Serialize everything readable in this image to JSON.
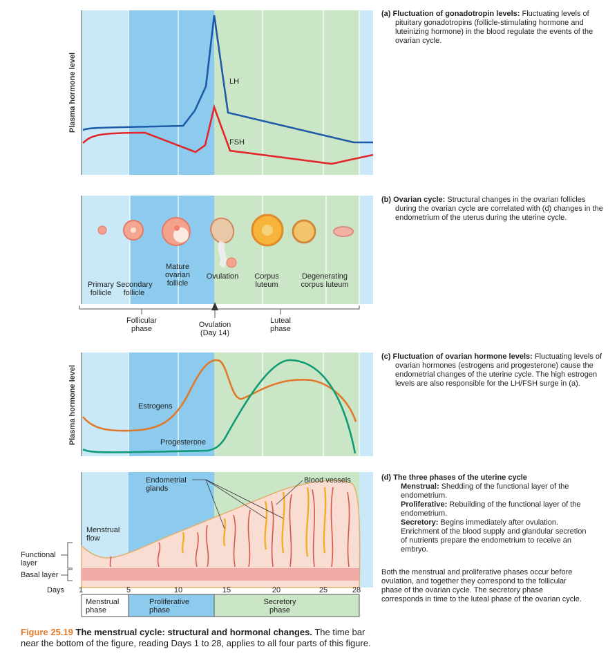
{
  "panel_a": {
    "y_axis_label": "Plasma hormone level",
    "curve_labels": {
      "lh": "LH",
      "fsh": "FSH"
    },
    "caption": {
      "heading": "(a) Fluctuation of gonadotropin levels:",
      "text": "Fluctuating levels of pituitary gonadotropins (follicle-stimulating hormone and luteinizing hormone) in the blood regulate the events of the ovarian cycle."
    }
  },
  "panel_b": {
    "stage_labels": [
      "Primary follicle",
      "Secondary follicle",
      "Mature ovarian follicle",
      "Ovulation",
      "Corpus luteum",
      "Degenerating corpus luteum"
    ],
    "phase_labels": [
      "Follicular phase",
      "Ovulation (Day 14)",
      "Luteal phase"
    ],
    "caption": {
      "heading": "(b) Ovarian cycle:",
      "text": "Structural changes in the ovarian follicles during the ovarian cycle are correlated with (d) changes in the endometrium of the uterus during the uterine cycle."
    }
  },
  "panel_c": {
    "y_axis_label": "Plasma hormone level",
    "curve_labels": {
      "estrogens": "Estrogens",
      "progesterone": "Progesterone"
    },
    "caption": {
      "heading": "(c) Fluctuation of ovarian hormone levels:",
      "text": "Fluctuating levels of ovarian hormones (estrogens and progesterone) cause the endometrial changes of the uterine cycle. The high estrogen levels are also responsible for the LH/FSH surge in (a)."
    }
  },
  "panel_d": {
    "callouts": [
      "Endometrial glands",
      "Blood vessels",
      "Menstrual flow"
    ],
    "layer_labels": [
      "Functional layer",
      "Basal layer"
    ],
    "caption": {
      "heading": "(d) The three phases of the uterine cycle",
      "items": [
        {
          "term": "Menstrual:",
          "text": "Shedding of the functional layer of the endometrium."
        },
        {
          "term": "Proliferative:",
          "text": "Rebuilding of the functional layer of the endometrium."
        },
        {
          "term": "Secretory:",
          "text": "Begins immediately after ovulation. Enrichment of the blood supply and glandular secretion of nutrients prepare the endometrium to receive an embryo."
        }
      ],
      "note": "Both the menstrual and proliferative phases occur before ovulation, and together they correspond to the follicular phase of the ovarian cycle. The secretory phase corresponds in time to the luteal phase of the ovarian cycle."
    }
  },
  "time_bar": {
    "days_label": "Days",
    "days": [
      1,
      5,
      10,
      15,
      20,
      25,
      28
    ],
    "phases": [
      "Menstrual phase",
      "Proliferative phase",
      "Secretory phase"
    ]
  },
  "figure_caption": {
    "number": "Figure 25.19",
    "title": "The menstrual cycle: structural and hormonal changes.",
    "text": "The time bar near the bottom of the figure, reading Days 1 to 28, applies to all four parts of this figure."
  }
}
